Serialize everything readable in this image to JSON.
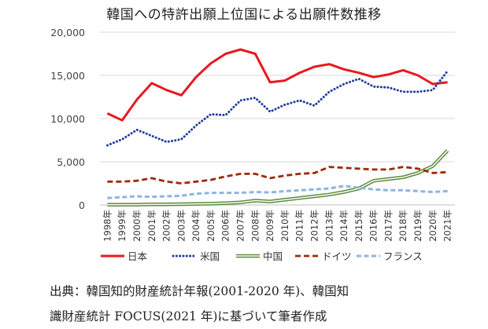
{
  "chart_data": {
    "type": "line",
    "title": "韓国への特許出願上位国による出願件数推移",
    "xlabel": "",
    "ylabel": "",
    "ylim": [
      0,
      20000
    ],
    "yticks": [
      0,
      5000,
      10000,
      15000,
      20000
    ],
    "ytick_labels": [
      "0",
      "5,000",
      "10,000",
      "15,000",
      "20,000"
    ],
    "grid": true,
    "legend_position": "bottom",
    "categories": [
      "1998年",
      "1999年",
      "2000年",
      "2001年",
      "2002年",
      "2003年",
      "2004年",
      "2005年",
      "2006年",
      "2007年",
      "2008年",
      "2009年",
      "2010年",
      "2011年",
      "2012年",
      "2013年",
      "2014年",
      "2015年",
      "2016年",
      "2017年",
      "2018年",
      "2019年",
      "2020年",
      "2021年"
    ],
    "series": [
      {
        "name": "日本",
        "color": "#e8191f",
        "style": "solid",
        "values": [
          10600,
          9800,
          12200,
          14100,
          13300,
          12700,
          14800,
          16400,
          17500,
          18000,
          17500,
          14200,
          14400,
          15300,
          16000,
          16300,
          15700,
          15300,
          14800,
          15100,
          15600,
          15000,
          14000,
          14200
        ]
      },
      {
        "name": "米国",
        "color": "#1f3f9c",
        "style": "dotted",
        "values": [
          6900,
          7600,
          8700,
          8000,
          7300,
          7600,
          9200,
          10500,
          10400,
          12100,
          12400,
          10800,
          11600,
          12100,
          11500,
          13100,
          14000,
          14600,
          13700,
          13600,
          13100,
          13100,
          13300,
          15500
        ]
      },
      {
        "name": "中国",
        "color": "#5a8a3a",
        "style": "double",
        "values": [
          20,
          30,
          40,
          60,
          70,
          90,
          120,
          150,
          200,
          300,
          500,
          400,
          600,
          800,
          1000,
          1200,
          1500,
          1900,
          2800,
          3000,
          3200,
          3700,
          4500,
          6300
        ]
      },
      {
        "name": "ドイツ",
        "color": "#9c2a0a",
        "style": "dashed",
        "values": [
          2700,
          2700,
          2800,
          3100,
          2700,
          2500,
          2700,
          2900,
          3300,
          3600,
          3600,
          3100,
          3400,
          3600,
          3700,
          4400,
          4300,
          4200,
          4100,
          4100,
          4400,
          4200,
          3700,
          3800
        ]
      },
      {
        "name": "フランス",
        "color": "#8fb4e0",
        "style": "dashed-light",
        "values": [
          800,
          900,
          1000,
          950,
          1000,
          1050,
          1300,
          1400,
          1400,
          1400,
          1500,
          1450,
          1600,
          1700,
          1800,
          1900,
          2200,
          2000,
          1800,
          1700,
          1700,
          1600,
          1500,
          1600
        ]
      }
    ]
  },
  "source": {
    "line1": "出典：韓国知的財産統計年報(2001-2020 年)、韓国知",
    "line2": "識財産統計 FOCUS(2021 年)に基づいて筆者作成"
  }
}
